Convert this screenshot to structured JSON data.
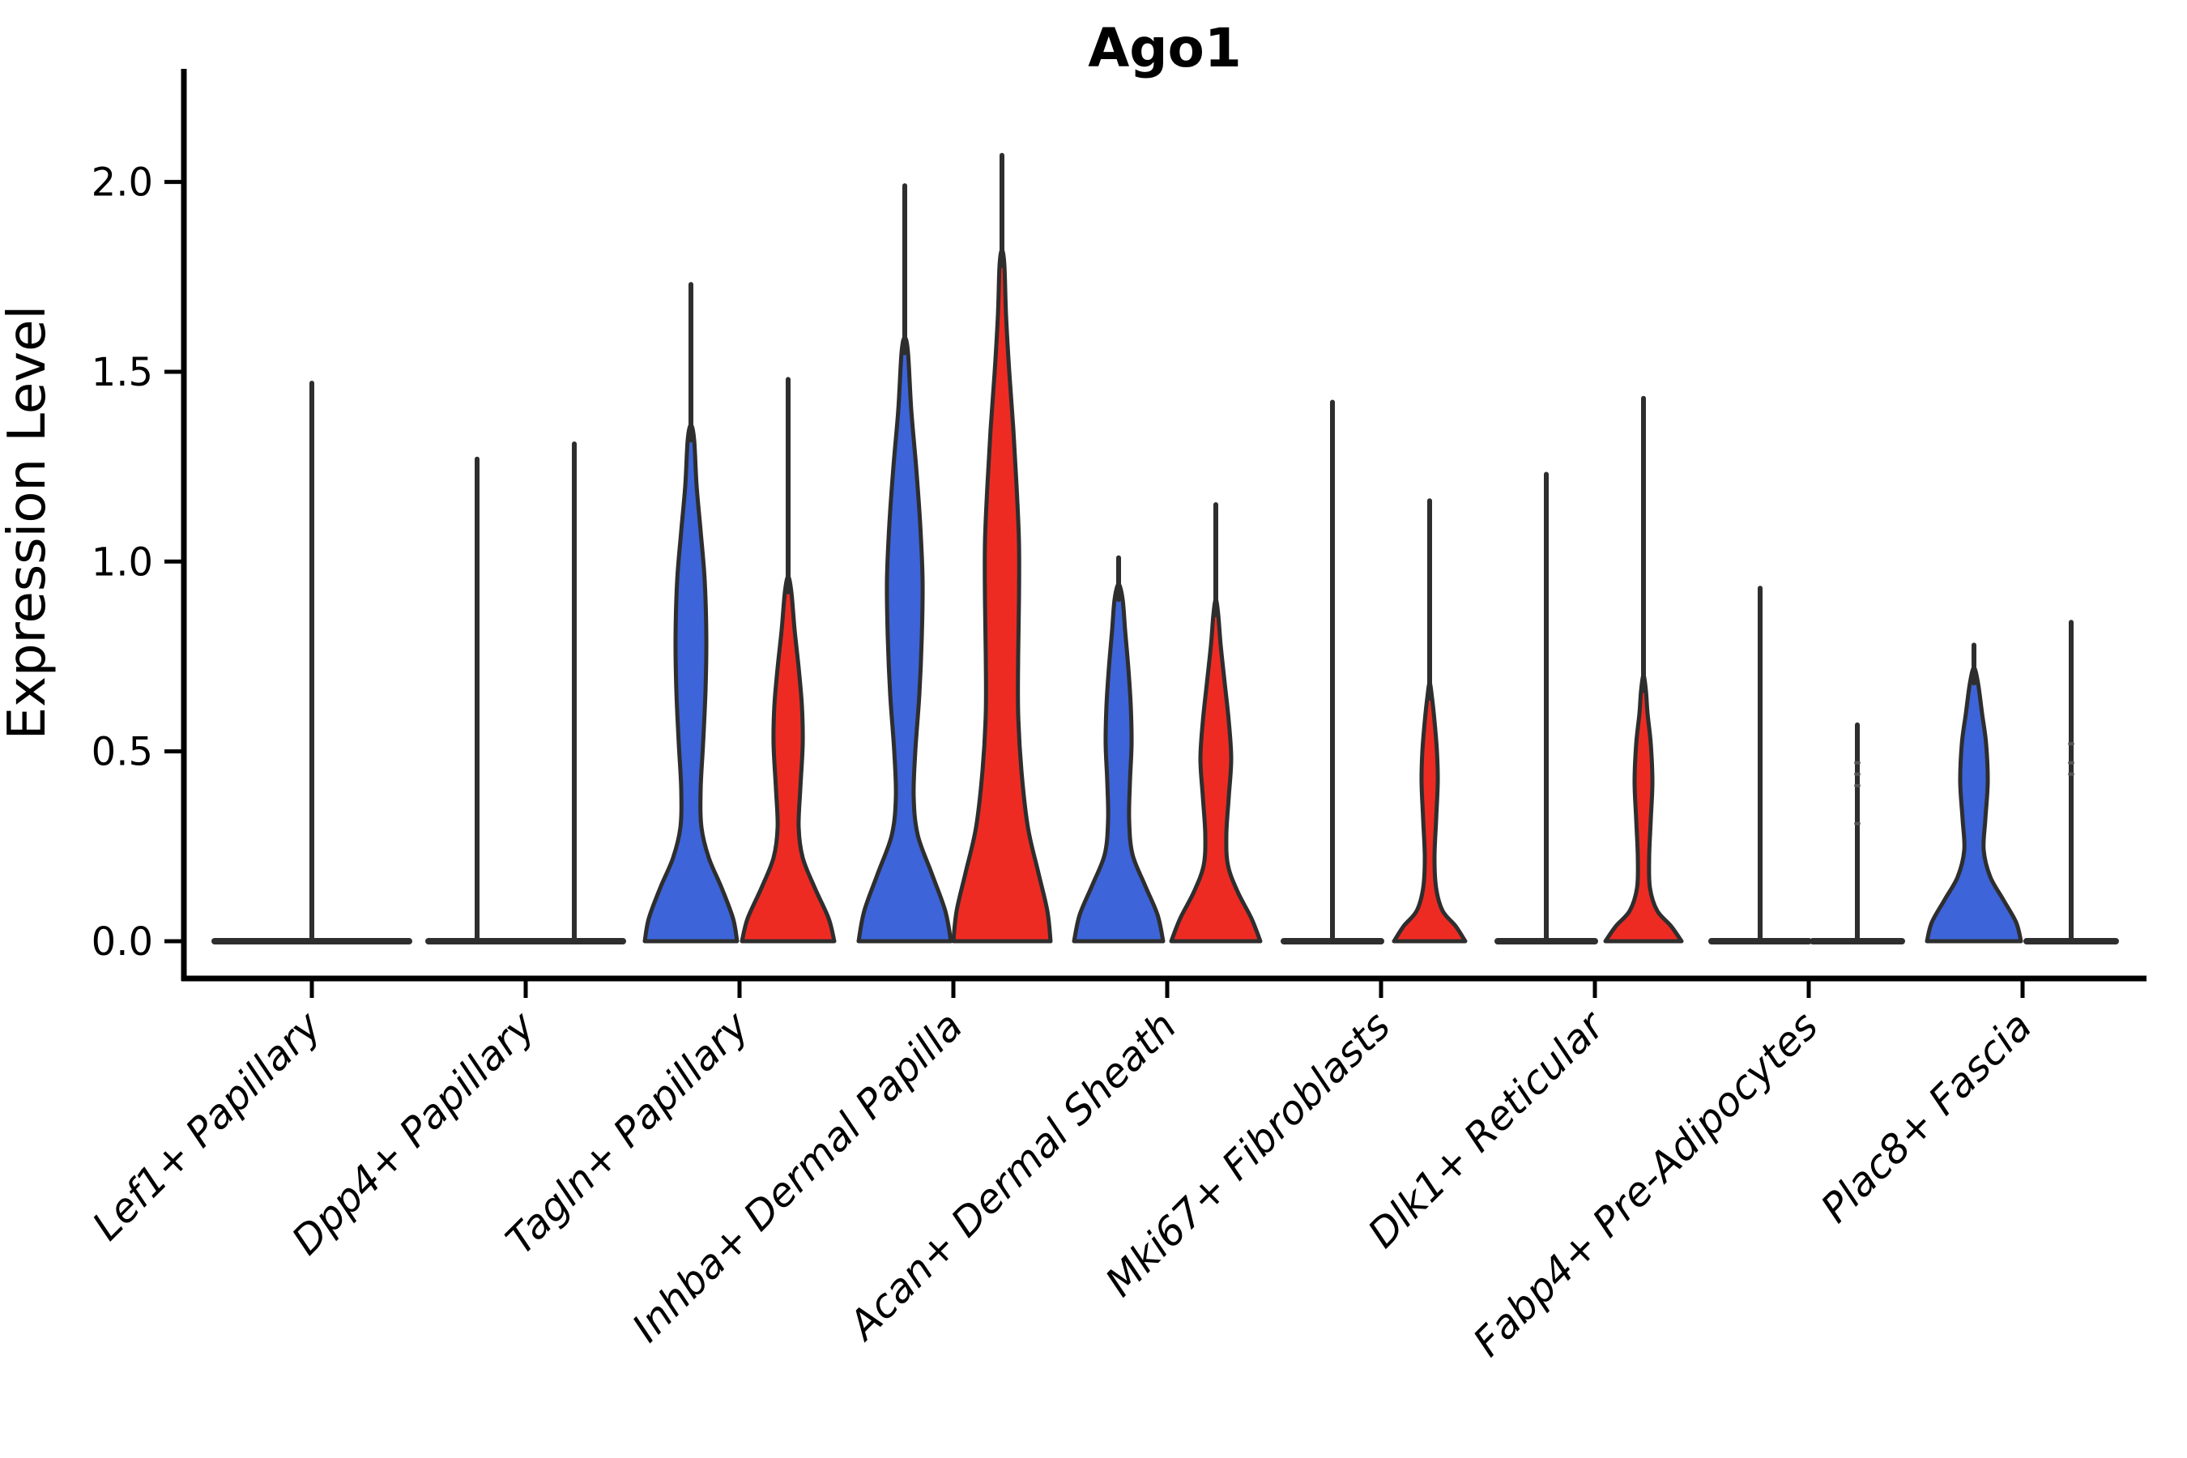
{
  "title": "Ago1",
  "axes": {
    "ylabel": "Expression Level",
    "ytick_labels": [
      "0.0",
      "0.5",
      "1.0",
      "1.5",
      "2.0"
    ]
  },
  "chart_data": {
    "type": "violin",
    "title": "Ago1",
    "xlabel": "",
    "ylabel": "Expression Level",
    "ytick_values": [
      0.0,
      0.5,
      1.0,
      1.5,
      2.0
    ],
    "ylim": [
      -0.1,
      2.3
    ],
    "grid": false,
    "legend": "none",
    "categories": [
      "Lef1+ Papillary",
      "Dpp4+ Papillary",
      "Tagln+ Papillary",
      "Inhba+ Dermal Papilla",
      "Acan+ Dermal Sheath",
      "Mki67+ Fibroblasts",
      "Dlk1+ Reticular",
      "Fabp4+ Pre-Adipocytes",
      "Plac8+ Fascia"
    ],
    "groups": [
      {
        "name": "group-blue",
        "color": "#3D64D8"
      },
      {
        "name": "group-red",
        "color": "#EE2B23"
      }
    ],
    "violins": [
      {
        "category_index": 0,
        "group": "single",
        "shape": "flat",
        "flat_halfwidth": 120,
        "spike_top": 1.47
      },
      {
        "category_index": 1,
        "group": "blue",
        "shape": "flat",
        "flat_halfwidth": 60,
        "spike_top": 1.27
      },
      {
        "category_index": 1,
        "group": "red",
        "shape": "flat",
        "flat_halfwidth": 60,
        "spike_top": 1.31
      },
      {
        "category_index": 2,
        "group": "blue",
        "shape": "curve",
        "spike_top": 1.73,
        "profile": [
          [
            0,
            57
          ],
          [
            0.06,
            52
          ],
          [
            0.14,
            38
          ],
          [
            0.22,
            22
          ],
          [
            0.3,
            13
          ],
          [
            0.4,
            12
          ],
          [
            0.52,
            15
          ],
          [
            0.66,
            18
          ],
          [
            0.8,
            19
          ],
          [
            0.95,
            17
          ],
          [
            1.08,
            12
          ],
          [
            1.2,
            7
          ],
          [
            1.32,
            4
          ]
        ]
      },
      {
        "category_index": 2,
        "group": "red",
        "shape": "curve",
        "spike_top": 1.48,
        "profile": [
          [
            0,
            57
          ],
          [
            0.06,
            50
          ],
          [
            0.14,
            33
          ],
          [
            0.22,
            18
          ],
          [
            0.3,
            13
          ],
          [
            0.4,
            15
          ],
          [
            0.52,
            18
          ],
          [
            0.62,
            17
          ],
          [
            0.72,
            13
          ],
          [
            0.82,
            8
          ],
          [
            0.92,
            4
          ]
        ]
      },
      {
        "category_index": 3,
        "group": "blue",
        "shape": "curve",
        "spike_top": 1.99,
        "profile": [
          [
            0,
            57
          ],
          [
            0.08,
            50
          ],
          [
            0.18,
            33
          ],
          [
            0.28,
            16
          ],
          [
            0.38,
            11
          ],
          [
            0.5,
            13
          ],
          [
            0.65,
            18
          ],
          [
            0.8,
            21
          ],
          [
            0.95,
            22
          ],
          [
            1.1,
            19
          ],
          [
            1.25,
            14
          ],
          [
            1.4,
            8
          ],
          [
            1.55,
            4
          ]
        ]
      },
      {
        "category_index": 3,
        "group": "red",
        "shape": "curve",
        "spike_top": 2.07,
        "profile": [
          [
            0,
            60
          ],
          [
            0.08,
            56
          ],
          [
            0.18,
            45
          ],
          [
            0.3,
            32
          ],
          [
            0.45,
            24
          ],
          [
            0.6,
            20
          ],
          [
            0.75,
            20
          ],
          [
            0.9,
            21
          ],
          [
            1.05,
            21
          ],
          [
            1.2,
            18
          ],
          [
            1.35,
            14
          ],
          [
            1.5,
            9
          ],
          [
            1.65,
            5
          ],
          [
            1.78,
            3
          ]
        ]
      },
      {
        "category_index": 4,
        "group": "blue",
        "shape": "curve",
        "spike_top": 1.01,
        "profile": [
          [
            0,
            55
          ],
          [
            0.07,
            48
          ],
          [
            0.15,
            32
          ],
          [
            0.23,
            17
          ],
          [
            0.32,
            13
          ],
          [
            0.42,
            14
          ],
          [
            0.52,
            16
          ],
          [
            0.62,
            15
          ],
          [
            0.72,
            12
          ],
          [
            0.82,
            8
          ],
          [
            0.9,
            5
          ]
        ]
      },
      {
        "category_index": 4,
        "group": "red",
        "shape": "curve",
        "spike_top": 1.15,
        "profile": [
          [
            0,
            55
          ],
          [
            0.06,
            44
          ],
          [
            0.13,
            27
          ],
          [
            0.2,
            15
          ],
          [
            0.28,
            13
          ],
          [
            0.38,
            16
          ],
          [
            0.48,
            19
          ],
          [
            0.58,
            16
          ],
          [
            0.68,
            11
          ],
          [
            0.78,
            6
          ],
          [
            0.86,
            3
          ]
        ]
      },
      {
        "category_index": 5,
        "group": "blue",
        "shape": "flat",
        "flat_halfwidth": 60,
        "spike_top": 1.42
      },
      {
        "category_index": 5,
        "group": "red",
        "shape": "curve",
        "spike_top": 1.16,
        "profile": [
          [
            0,
            44
          ],
          [
            0.04,
            32
          ],
          [
            0.08,
            16
          ],
          [
            0.14,
            8
          ],
          [
            0.22,
            6
          ],
          [
            0.32,
            8
          ],
          [
            0.42,
            10
          ],
          [
            0.5,
            9
          ],
          [
            0.58,
            6
          ],
          [
            0.64,
            3
          ]
        ]
      },
      {
        "category_index": 6,
        "group": "blue",
        "shape": "flat",
        "flat_halfwidth": 60,
        "spike_top": 1.23
      },
      {
        "category_index": 6,
        "group": "red",
        "shape": "curve",
        "spike_top": 1.43,
        "profile": [
          [
            0,
            47
          ],
          [
            0.04,
            34
          ],
          [
            0.08,
            17
          ],
          [
            0.14,
            8
          ],
          [
            0.22,
            7
          ],
          [
            0.32,
            9
          ],
          [
            0.42,
            11
          ],
          [
            0.52,
            9
          ],
          [
            0.6,
            5
          ],
          [
            0.66,
            3
          ]
        ]
      },
      {
        "category_index": 7,
        "group": "blue",
        "shape": "flat",
        "flat_halfwidth": 60,
        "spike_top": 0.93
      },
      {
        "category_index": 7,
        "group": "red",
        "shape": "flat",
        "flat_halfwidth": 55,
        "spike_top": 0.57,
        "dots": [
          0.47,
          0.44,
          0.41,
          0.31
        ]
      },
      {
        "category_index": 8,
        "group": "blue",
        "shape": "curve",
        "spike_top": 0.78,
        "profile": [
          [
            0,
            58
          ],
          [
            0.05,
            52
          ],
          [
            0.11,
            36
          ],
          [
            0.17,
            20
          ],
          [
            0.24,
            12
          ],
          [
            0.32,
            14
          ],
          [
            0.42,
            17
          ],
          [
            0.52,
            15
          ],
          [
            0.6,
            10
          ],
          [
            0.68,
            5
          ]
        ]
      },
      {
        "category_index": 8,
        "group": "red",
        "shape": "flat",
        "flat_halfwidth": 55,
        "spike_top": 0.84,
        "dots": [
          0.52,
          0.47,
          0.44
        ]
      }
    ]
  },
  "style": {
    "blue": "#3D64D8",
    "red": "#EE2B23",
    "edge": "#2e2e2e",
    "axis": "#000000"
  }
}
